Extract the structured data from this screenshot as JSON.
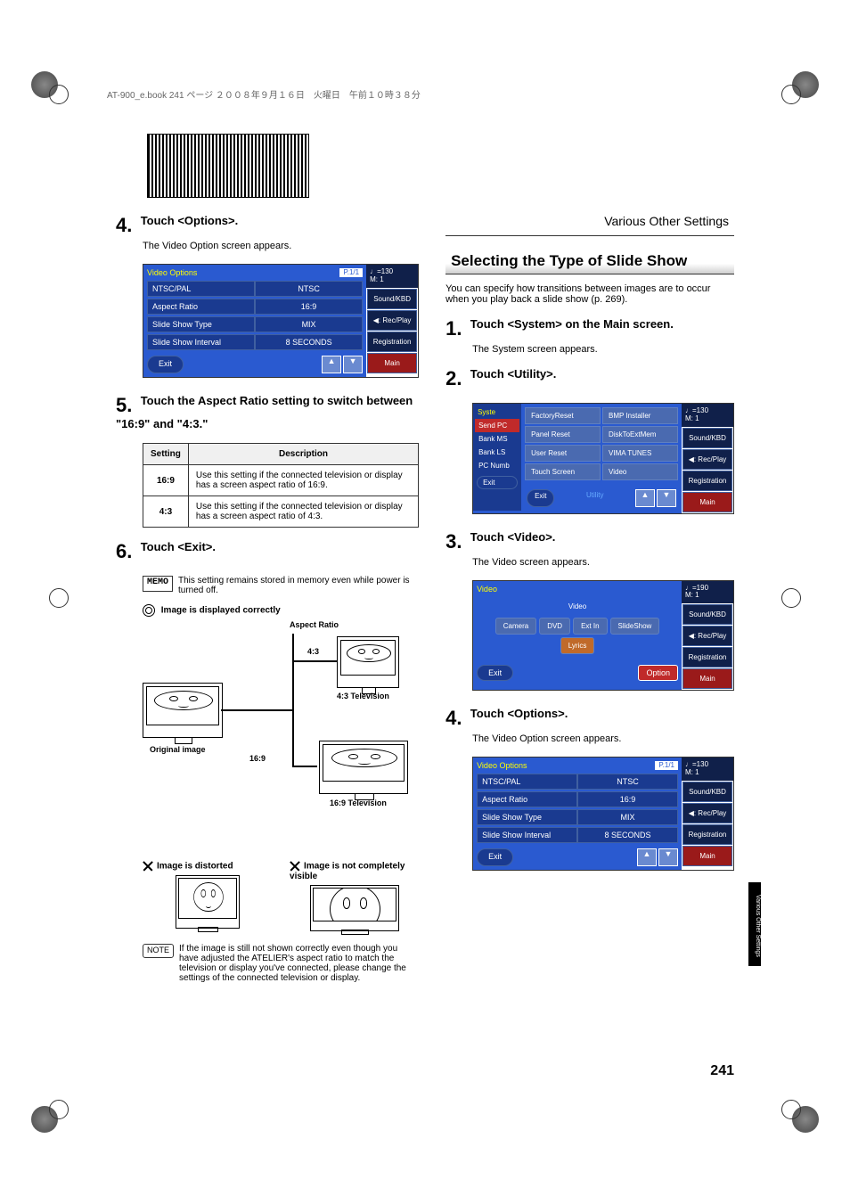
{
  "header_strip": "AT-900_e.book  241 ページ  ２００８年９月１６日　火曜日　午前１０時３８分",
  "section_header": "Various Other Settings",
  "left": {
    "step4": {
      "num": "4.",
      "title": "Touch <Options>.",
      "body": "The Video Option screen appears."
    },
    "panel4": {
      "title": "Video Options",
      "page": "P.1/1",
      "tempo": "♩=130",
      "meas": "M:   1",
      "rows": [
        {
          "label": "NTSC/PAL",
          "value": "NTSC"
        },
        {
          "label": "Aspect Ratio",
          "value": "16:9"
        },
        {
          "label": "Slide Show Type",
          "value": "MIX"
        },
        {
          "label": "Slide Show Interval",
          "value": "8 SECONDS"
        }
      ],
      "exit": "Exit",
      "side": [
        "Sound/KBD",
        "◀: Rec/Play",
        "Registration",
        "Main"
      ]
    },
    "step5": {
      "num": "5.",
      "title": "Touch the Aspect Ratio setting to switch between \"16:9\" and \"4:3.\""
    },
    "table": {
      "head": [
        "Setting",
        "Description"
      ],
      "rows": [
        {
          "s": "16:9",
          "d": "Use this setting if the connected television or display has a screen aspect ratio of 16:9."
        },
        {
          "s": "4:3",
          "d": "Use this setting if the connected television or display has a screen aspect ratio of 4:3."
        }
      ]
    },
    "step6": {
      "num": "6.",
      "title": "Touch <Exit>."
    },
    "memo": {
      "label": "MEMO",
      "text": "This setting remains stored in memory even while power is turned off."
    },
    "diag": {
      "ok_title": "Image is displayed correctly",
      "aspect_label": "Aspect Ratio",
      "r43": "4:3",
      "r169": "16:9",
      "tv43": "4:3 Television",
      "tv169": "16:9 Television",
      "orig": "Original image",
      "bad1": "Image is distorted",
      "bad2": "Image is not completely visible"
    },
    "note": {
      "label": "NOTE",
      "text": "If the image is still not shown correctly even though you have adjusted the ATELIER's aspect ratio to match the television or display you've connected, please change the settings of the connected television or display."
    }
  },
  "right": {
    "subsection": "Selecting the Type of Slide Show",
    "intro": "You can specify how transitions between images are to occur when you play back a slide show (p. 269).",
    "step1": {
      "num": "1.",
      "title": "Touch <System> on the Main screen.",
      "body": "The System screen appears."
    },
    "step2": {
      "num": "2.",
      "title": "Touch <Utility>."
    },
    "util_panel": {
      "title": "Syste",
      "tempo": "♩=130",
      "meas": "M:   1",
      "left_tabs": [
        "Send PC",
        "Bank MS",
        "Bank LS",
        "PC Numb"
      ],
      "grid": [
        [
          "FactoryReset",
          "BMP Installer"
        ],
        [
          "Panel Reset",
          "DiskToExtMem"
        ],
        [
          "User Reset",
          "VIMA TUNES"
        ],
        [
          "Touch Screen",
          "Video"
        ]
      ],
      "exit": "Exit",
      "exit2": "Exit",
      "utility": "Utility",
      "side": [
        "Sound/KBD",
        "◀: Rec/Play",
        "Registration",
        "Main"
      ]
    },
    "step3": {
      "num": "3.",
      "title": "Touch <Video>.",
      "body": "The Video screen appears."
    },
    "video_panel": {
      "title": "Video",
      "tempo": "♩=190",
      "meas": "M:   1",
      "section": "Video",
      "btns": [
        "Camera",
        "DVD",
        "Ext In",
        "SlideShow",
        "Lyrics"
      ],
      "exit": "Exit",
      "option": "Option",
      "side": [
        "Sound/KBD",
        "◀: Rec/Play",
        "Registration",
        "Main"
      ]
    },
    "step4": {
      "num": "4.",
      "title": "Touch <Options>.",
      "body": "The Video Option screen appears."
    },
    "panel4": {
      "title": "Video Options",
      "page": "P.1/1",
      "tempo": "♩=130",
      "meas": "M:   1",
      "rows": [
        {
          "label": "NTSC/PAL",
          "value": "NTSC"
        },
        {
          "label": "Aspect Ratio",
          "value": "16:9"
        },
        {
          "label": "Slide Show Type",
          "value": "MIX"
        },
        {
          "label": "Slide Show Interval",
          "value": "8 SECONDS"
        }
      ],
      "exit": "Exit",
      "side": [
        "Sound/KBD",
        "◀: Rec/Play",
        "Registration",
        "Main"
      ]
    }
  },
  "pagenum": "241",
  "sidetab": "Various Other Settings"
}
